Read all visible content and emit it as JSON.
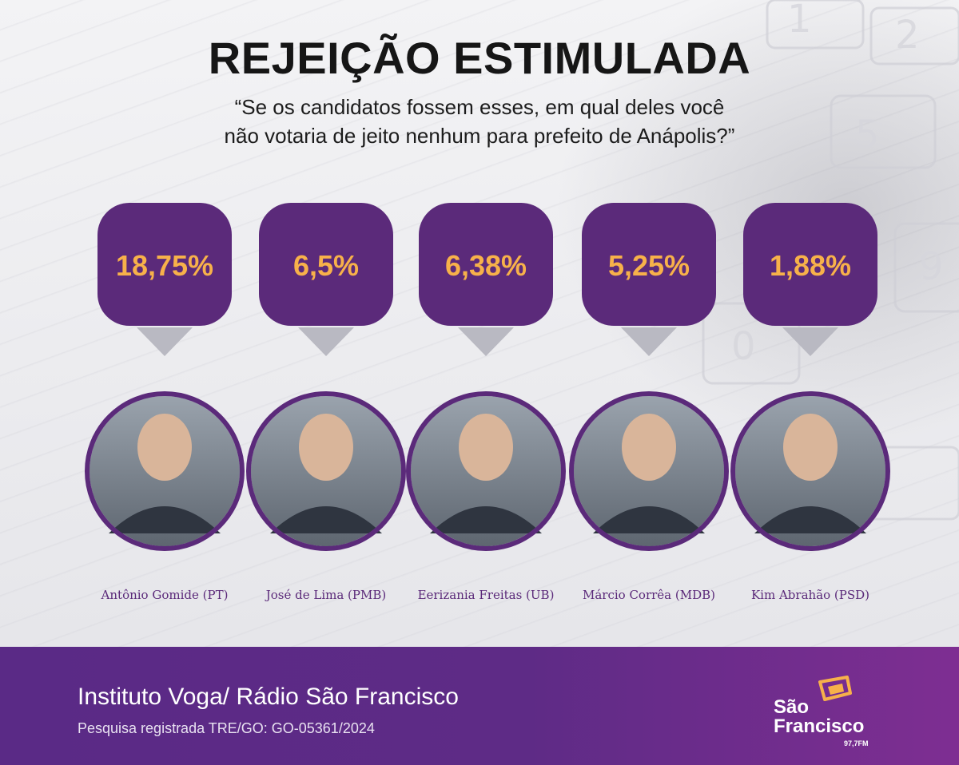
{
  "header": {
    "title": "REJEIÇÃO ESTIMULADA",
    "subtitle_line1": "“Se os candidatos fossem esses, em qual deles você",
    "subtitle_line2": "não votaria de jeito nenhum para prefeito de Anápolis?”"
  },
  "chart_data": {
    "type": "bar",
    "categories": [
      "Antônio Gomide (PT)",
      "José de Lima (PMB)",
      "Eerizania Freitas (UB)",
      "Márcio Corrêa (MDB)",
      "Kim Abrahão (PSD)"
    ],
    "values": [
      18.75,
      6.5,
      6.38,
      5.25,
      1.88
    ],
    "value_labels": [
      "18,75%",
      "6,5%",
      "6,38%",
      "5,25%",
      "1,88%"
    ],
    "unit": "%"
  },
  "footer": {
    "source": "Instituto Voga/ Rádio São Francisco",
    "registration": "Pesquisa registrada TRE/GO: GO-05361/2024",
    "logo_line1": "São",
    "logo_line2": "Francisco",
    "logo_freq": "97,7FM"
  },
  "colors": {
    "accent_purple": "#5b2a7a",
    "value_orange": "#f7b14a",
    "pointer_gray": "#b9b9c2"
  }
}
